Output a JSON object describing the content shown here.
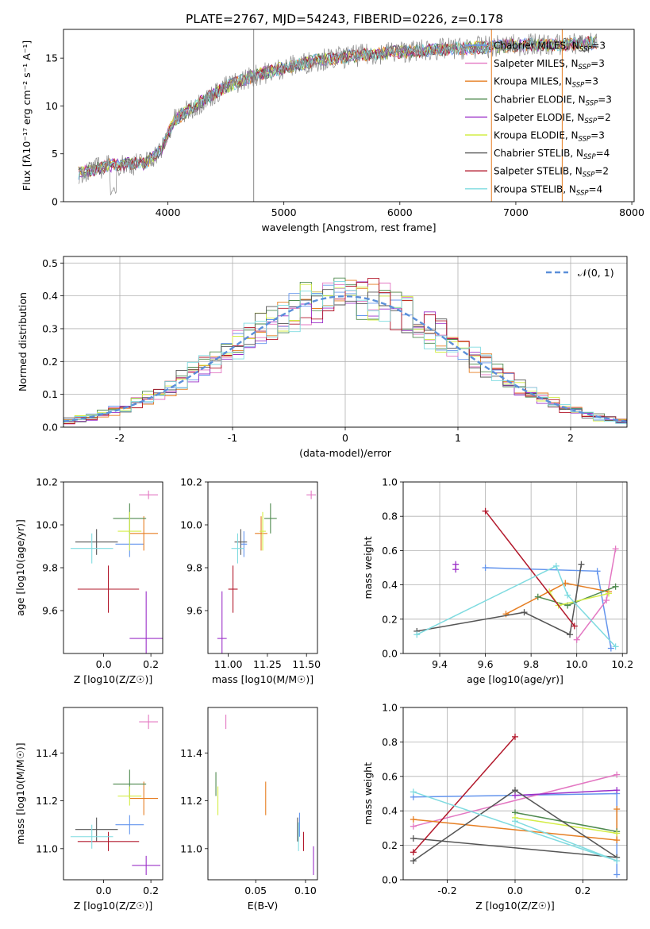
{
  "figure_title": "PLATE=2767, MJD=54243, FIBERID=0226, z=0.178",
  "colors": {
    "chabrier_miles": "#6495ed",
    "salpeter_miles": "#e377c2",
    "kroupa_miles": "#e67e22",
    "chabrier_elodie": "#4f8a4f",
    "salpeter_elodie": "#9b30c8",
    "kroupa_elodie": "#d4ed47",
    "chabrier_stelib": "#555555",
    "salpeter_stelib": "#b2182b",
    "kroupa_stelib": "#7fdbe0",
    "data": "#888888",
    "normal": "#5b8fd9"
  },
  "chart_data": [
    {
      "type": "line",
      "xlabel": "wavelength [Angstrom, rest frame]",
      "ylabel": "Flux [fλ10⁻¹⁷ erg cm⁻² s⁻¹ A⁻¹]",
      "xlim": [
        3100,
        8020
      ],
      "ylim": [
        0,
        18
      ],
      "xticks": [
        4000,
        5000,
        6000,
        7000,
        8000
      ],
      "yticks": [
        0,
        5,
        10,
        15
      ],
      "continuum": {
        "x": [
          3230,
          3500,
          3800,
          3950,
          4050,
          4300,
          4500,
          4700,
          5000,
          5300,
          5600,
          5900,
          6200,
          6500,
          6800,
          7100,
          7400,
          7700
        ],
        "y": [
          3.0,
          3.8,
          4.0,
          5.5,
          8.5,
          10.5,
          12.0,
          13.0,
          14.0,
          14.8,
          15.2,
          15.6,
          15.8,
          16.0,
          16.2,
          16.4,
          16.4,
          16.6
        ]
      },
      "legend_position": "upper right",
      "legend": [
        {
          "label": "Chabrier MILES, N",
          "sub": "SSP",
          "suffix": "=3"
        },
        {
          "label": "Salpeter MILES, N",
          "sub": "SSP",
          "suffix": "=3"
        },
        {
          "label": "Kroupa MILES, N",
          "sub": "SSP",
          "suffix": "=3"
        },
        {
          "label": "Chabrier ELODIE, N",
          "sub": "SSP",
          "suffix": "=3"
        },
        {
          "label": "Salpeter ELODIE, N",
          "sub": "SSP",
          "suffix": "=2"
        },
        {
          "label": "Kroupa ELODIE, N",
          "sub": "SSP",
          "suffix": "=3"
        },
        {
          "label": "Chabrier STELIB, N",
          "sub": "SSP",
          "suffix": "=4"
        },
        {
          "label": "Salpeter STELIB, N",
          "sub": "SSP",
          "suffix": "=2"
        },
        {
          "label": "Kroupa STELIB, N",
          "sub": "SSP",
          "suffix": "=4"
        }
      ]
    },
    {
      "type": "line",
      "xlabel": "(data-model)/error",
      "ylabel": "Normed distribution",
      "xlim": [
        -2.5,
        2.5
      ],
      "ylim": [
        0,
        0.52
      ],
      "xticks": [
        -2,
        -1,
        0,
        1,
        2
      ],
      "yticks": [
        0.0,
        0.1,
        0.2,
        0.3,
        0.4,
        0.5
      ],
      "grid": true,
      "legend_label": "𝒩(0, 1)",
      "legend_position": "upper right"
    },
    {
      "type": "scatter",
      "name": "age vs Z",
      "xlabel": "Z [log10(Z/Z☉)]",
      "ylabel": "age  [log10(age/yr)]",
      "xlim": [
        -0.17,
        0.25
      ],
      "ylim": [
        9.4,
        10.2
      ],
      "xticks": [
        0.0,
        0.2
      ],
      "yticks": [
        9.6,
        9.8,
        10.0,
        10.2
      ],
      "points": [
        {
          "m": "chabrier_miles",
          "x": 0.11,
          "y": 9.91,
          "ex": 0.06,
          "ey": 0.06
        },
        {
          "m": "salpeter_miles",
          "x": 0.19,
          "y": 10.14,
          "ex": 0.04,
          "ey": 0.02
        },
        {
          "m": "kroupa_miles",
          "x": 0.17,
          "y": 9.96,
          "ex": 0.06,
          "ey": 0.08
        },
        {
          "m": "chabrier_elodie",
          "x": 0.11,
          "y": 10.03,
          "ex": 0.07,
          "ey": 0.07
        },
        {
          "m": "salpeter_elodie",
          "x": 0.18,
          "y": 9.47,
          "ex": 0.07,
          "ey": 0.22
        },
        {
          "m": "kroupa_elodie",
          "x": 0.11,
          "y": 9.97,
          "ex": 0.05,
          "ey": 0.09
        },
        {
          "m": "chabrier_stelib",
          "x": -0.03,
          "y": 9.92,
          "ex": 0.09,
          "ey": 0.06
        },
        {
          "m": "salpeter_stelib",
          "x": 0.02,
          "y": 9.7,
          "ex": 0.13,
          "ey": 0.11
        },
        {
          "m": "kroupa_stelib",
          "x": -0.05,
          "y": 9.89,
          "ex": 0.09,
          "ey": 0.07
        }
      ]
    },
    {
      "type": "scatter",
      "name": "age vs mass",
      "xlabel": "mass [log10(M/M☉)]",
      "ylabel": "",
      "xlim": [
        10.87,
        11.57
      ],
      "ylim": [
        9.4,
        10.2
      ],
      "xticks": [
        11.0,
        11.25,
        11.5
      ],
      "yticks": [
        9.6,
        9.8,
        10.0,
        10.2
      ],
      "points": [
        {
          "m": "chabrier_miles",
          "x": 11.1,
          "y": 9.91,
          "ex": 0.02,
          "ey": 0.06
        },
        {
          "m": "salpeter_miles",
          "x": 11.53,
          "y": 10.14,
          "ex": 0.03,
          "ey": 0.02
        },
        {
          "m": "kroupa_miles",
          "x": 11.21,
          "y": 9.96,
          "ex": 0.04,
          "ey": 0.08
        },
        {
          "m": "chabrier_elodie",
          "x": 11.27,
          "y": 10.03,
          "ex": 0.04,
          "ey": 0.07
        },
        {
          "m": "salpeter_elodie",
          "x": 10.96,
          "y": 9.47,
          "ex": 0.03,
          "ey": 0.22
        },
        {
          "m": "kroupa_elodie",
          "x": 11.22,
          "y": 9.97,
          "ex": 0.02,
          "ey": 0.09
        },
        {
          "m": "chabrier_stelib",
          "x": 11.08,
          "y": 9.92,
          "ex": 0.04,
          "ey": 0.06
        },
        {
          "m": "salpeter_stelib",
          "x": 11.03,
          "y": 9.7,
          "ex": 0.03,
          "ey": 0.11
        },
        {
          "m": "kroupa_stelib",
          "x": 11.06,
          "y": 9.89,
          "ex": 0.04,
          "ey": 0.07
        }
      ]
    },
    {
      "type": "line",
      "name": "mass weight vs age",
      "xlabel": "age  [log10(age/yr)]",
      "ylabel": "mass weight",
      "xlim": [
        9.24,
        10.22
      ],
      "ylim": [
        0.0,
        1.0
      ],
      "xticks": [
        9.4,
        9.6,
        9.8,
        10.0,
        10.2
      ],
      "yticks": [
        0.0,
        0.2,
        0.4,
        0.6,
        0.8,
        1.0
      ],
      "grid": true,
      "series": [
        {
          "m": "chabrier_miles",
          "x": [
            9.6,
            10.09,
            10.15
          ],
          "y": [
            0.5,
            0.48,
            0.03
          ]
        },
        {
          "m": "salpeter_miles",
          "x": [
            10.0,
            10.13,
            10.17
          ],
          "y": [
            0.08,
            0.31,
            0.61
          ]
        },
        {
          "m": "kroupa_miles",
          "x": [
            9.69,
            9.95,
            10.14
          ],
          "y": [
            0.23,
            0.41,
            0.36
          ]
        },
        {
          "m": "chabrier_elodie",
          "x": [
            9.83,
            9.96,
            10.17
          ],
          "y": [
            0.33,
            0.28,
            0.39
          ]
        },
        {
          "m": "salpeter_elodie",
          "x": [
            9.47,
            9.47
          ],
          "y": [
            0.52,
            0.49
          ]
        },
        {
          "m": "kroupa_elodie",
          "x": [
            9.88,
            9.92,
            10.14
          ],
          "y": [
            0.36,
            0.28,
            0.35
          ]
        },
        {
          "m": "chabrier_stelib",
          "x": [
            9.3,
            9.77,
            9.97,
            10.02
          ],
          "y": [
            0.13,
            0.24,
            0.11,
            0.52
          ]
        },
        {
          "m": "salpeter_stelib",
          "x": [
            9.6,
            9.99
          ],
          "y": [
            0.83,
            0.16
          ]
        },
        {
          "m": "kroupa_stelib",
          "x": [
            9.3,
            9.91,
            9.96,
            10.17
          ],
          "y": [
            0.11,
            0.51,
            0.34,
            0.04
          ]
        }
      ]
    },
    {
      "type": "scatter",
      "name": "mass vs Z",
      "xlabel": "Z [log10(Z/Z☉)]",
      "ylabel": "mass [log10(M/M☉)]",
      "xlim": [
        -0.17,
        0.25
      ],
      "ylim": [
        10.87,
        11.59
      ],
      "xticks": [
        0.0,
        0.2
      ],
      "yticks": [
        11.0,
        11.2,
        11.4
      ],
      "points": [
        {
          "m": "chabrier_miles",
          "x": 0.11,
          "y": 11.1,
          "ex": 0.06,
          "ey": 0.04
        },
        {
          "m": "salpeter_miles",
          "x": 0.19,
          "y": 11.53,
          "ex": 0.04,
          "ey": 0.03
        },
        {
          "m": "kroupa_miles",
          "x": 0.17,
          "y": 11.21,
          "ex": 0.06,
          "ey": 0.07
        },
        {
          "m": "chabrier_elodie",
          "x": 0.11,
          "y": 11.27,
          "ex": 0.07,
          "ey": 0.06
        },
        {
          "m": "salpeter_elodie",
          "x": 0.18,
          "y": 10.93,
          "ex": 0.06,
          "ey": 0.04
        },
        {
          "m": "kroupa_elodie",
          "x": 0.11,
          "y": 11.22,
          "ex": 0.05,
          "ey": 0.04
        },
        {
          "m": "chabrier_stelib",
          "x": -0.03,
          "y": 11.08,
          "ex": 0.09,
          "ey": 0.05
        },
        {
          "m": "salpeter_stelib",
          "x": 0.02,
          "y": 11.03,
          "ex": 0.13,
          "ey": 0.04
        },
        {
          "m": "kroupa_stelib",
          "x": -0.05,
          "y": 11.05,
          "ex": 0.09,
          "ey": 0.05
        }
      ]
    },
    {
      "type": "scatter",
      "name": "mass vs E(B-V)",
      "xlabel": "E(B-V)",
      "ylabel": "",
      "xlim": [
        0.002,
        0.112
      ],
      "ylim": [
        10.87,
        11.59
      ],
      "xticks": [
        0.05,
        0.1
      ],
      "yticks": [
        11.0,
        11.2,
        11.4
      ],
      "points": [
        {
          "m": "chabrier_miles",
          "x": 0.094,
          "y": 11.1,
          "ex": 0.0,
          "ey": 0.05
        },
        {
          "m": "salpeter_miles",
          "x": 0.02,
          "y": 11.53,
          "ex": 0.0,
          "ey": 0.03
        },
        {
          "m": "kroupa_miles",
          "x": 0.06,
          "y": 11.21,
          "ex": 0.0,
          "ey": 0.07
        },
        {
          "m": "chabrier_elodie",
          "x": 0.01,
          "y": 11.27,
          "ex": 0.0,
          "ey": 0.05
        },
        {
          "m": "salpeter_elodie",
          "x": 0.108,
          "y": 10.95,
          "ex": 0.0,
          "ey": 0.06
        },
        {
          "m": "kroupa_elodie",
          "x": 0.012,
          "y": 11.2,
          "ex": 0.0,
          "ey": 0.06
        },
        {
          "m": "chabrier_stelib",
          "x": 0.092,
          "y": 11.08,
          "ex": 0.0,
          "ey": 0.05
        },
        {
          "m": "salpeter_stelib",
          "x": 0.098,
          "y": 11.03,
          "ex": 0.0,
          "ey": 0.04
        },
        {
          "m": "kroupa_stelib",
          "x": 0.093,
          "y": 11.05,
          "ex": 0.0,
          "ey": 0.06
        }
      ]
    },
    {
      "type": "line",
      "name": "mass weight vs Z",
      "xlabel": "Z [log10(Z/Z☉)]",
      "ylabel": "mass weight",
      "xlim": [
        -0.33,
        0.33
      ],
      "ylim": [
        0.0,
        1.0
      ],
      "xticks": [
        -0.2,
        0.0,
        0.2
      ],
      "yticks": [
        0.0,
        0.2,
        0.4,
        0.6,
        0.8,
        1.0
      ],
      "grid": true,
      "series": [
        {
          "m": "chabrier_miles",
          "x": [
            -0.3,
            0.3,
            0.3
          ],
          "y": [
            0.48,
            0.5,
            0.03
          ]
        },
        {
          "m": "salpeter_miles",
          "x": [
            -0.3,
            0.3
          ],
          "y": [
            0.31,
            0.61
          ]
        },
        {
          "m": "kroupa_miles",
          "x": [
            -0.3,
            0.3,
            0.3
          ],
          "y": [
            0.35,
            0.23,
            0.41
          ]
        },
        {
          "m": "chabrier_elodie",
          "x": [
            0.0,
            0.3
          ],
          "y": [
            0.39,
            0.28
          ]
        },
        {
          "m": "salpeter_elodie",
          "x": [
            0.0,
            0.3
          ],
          "y": [
            0.49,
            0.52
          ]
        },
        {
          "m": "kroupa_elodie",
          "x": [
            0.0,
            0.3
          ],
          "y": [
            0.36,
            0.27
          ]
        },
        {
          "m": "chabrier_stelib",
          "x": [
            -0.3,
            0.0,
            0.3,
            -0.3
          ],
          "y": [
            0.11,
            0.52,
            0.13,
            0.24
          ]
        },
        {
          "m": "salpeter_stelib",
          "x": [
            -0.3,
            0.0
          ],
          "y": [
            0.16,
            0.83
          ]
        },
        {
          "m": "kroupa_stelib",
          "x": [
            -0.3,
            0.3,
            0.0
          ],
          "y": [
            0.51,
            0.11,
            0.34
          ]
        }
      ]
    }
  ]
}
